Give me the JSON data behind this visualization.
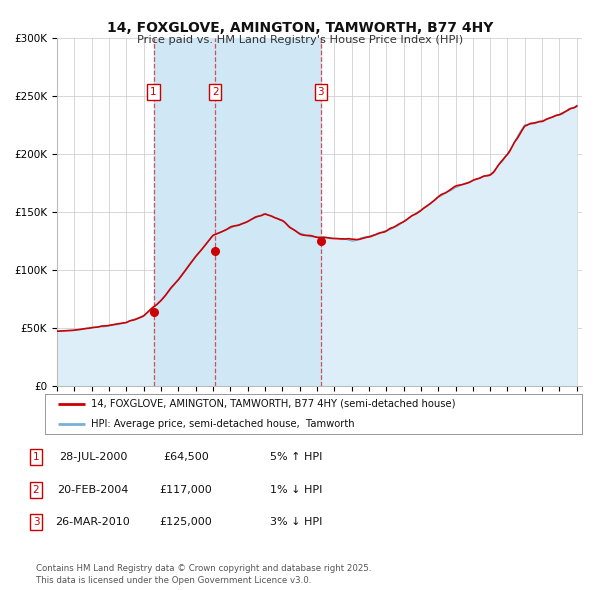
{
  "title": "14, FOXGLOVE, AMINGTON, TAMWORTH, B77 4HY",
  "subtitle": "Price paid vs. HM Land Registry's House Price Index (HPI)",
  "ylim": [
    0,
    300000
  ],
  "yticks": [
    0,
    50000,
    100000,
    150000,
    200000,
    250000,
    300000
  ],
  "ytick_labels": [
    "£0",
    "£50K",
    "£100K",
    "£150K",
    "£200K",
    "£250K",
    "£300K"
  ],
  "sale_color": "#cc0000",
  "hpi_line_color": "#7ab0d4",
  "hpi_fill_color": "#ddeef8",
  "shade_between_sales_color": "#d0e8f5",
  "grid_color": "#c8c8c8",
  "bg_color": "#ffffff",
  "sales": [
    {
      "date_num": 2000.57,
      "price": 64500,
      "label": "1"
    },
    {
      "date_num": 2004.13,
      "price": 117000,
      "label": "2"
    },
    {
      "date_num": 2010.23,
      "price": 125000,
      "label": "3"
    }
  ],
  "legend_entries": [
    "14, FOXGLOVE, AMINGTON, TAMWORTH, B77 4HY (semi-detached house)",
    "HPI: Average price, semi-detached house,  Tamworth"
  ],
  "table_rows": [
    {
      "num": "1",
      "date": "28-JUL-2000",
      "price": "£64,500",
      "hpi": "5% ↑ HPI"
    },
    {
      "num": "2",
      "date": "20-FEB-2004",
      "price": "£117,000",
      "hpi": "1% ↓ HPI"
    },
    {
      "num": "3",
      "date": "26-MAR-2010",
      "price": "£125,000",
      "hpi": "3% ↓ HPI"
    }
  ],
  "footer": "Contains HM Land Registry data © Crown copyright and database right 2025.\nThis data is licensed under the Open Government Licence v3.0.",
  "hpi_anchors_year": [
    1995,
    1996,
    1997,
    1998,
    1999,
    2000,
    2001,
    2002,
    2003,
    2004,
    2005,
    2006,
    2007,
    2008,
    2009,
    2010,
    2011,
    2012,
    2013,
    2014,
    2015,
    2016,
    2017,
    2018,
    2019,
    2020,
    2021,
    2022,
    2023,
    2024,
    2025
  ],
  "hpi_anchors_val": [
    47500,
    48500,
    50500,
    52500,
    55000,
    61000,
    74000,
    92000,
    112000,
    130000,
    137000,
    142000,
    149000,
    143000,
    131000,
    129000,
    127500,
    126000,
    129000,
    134000,
    142000,
    152000,
    163000,
    172000,
    178000,
    182000,
    200000,
    225000,
    229000,
    234000,
    242000
  ]
}
